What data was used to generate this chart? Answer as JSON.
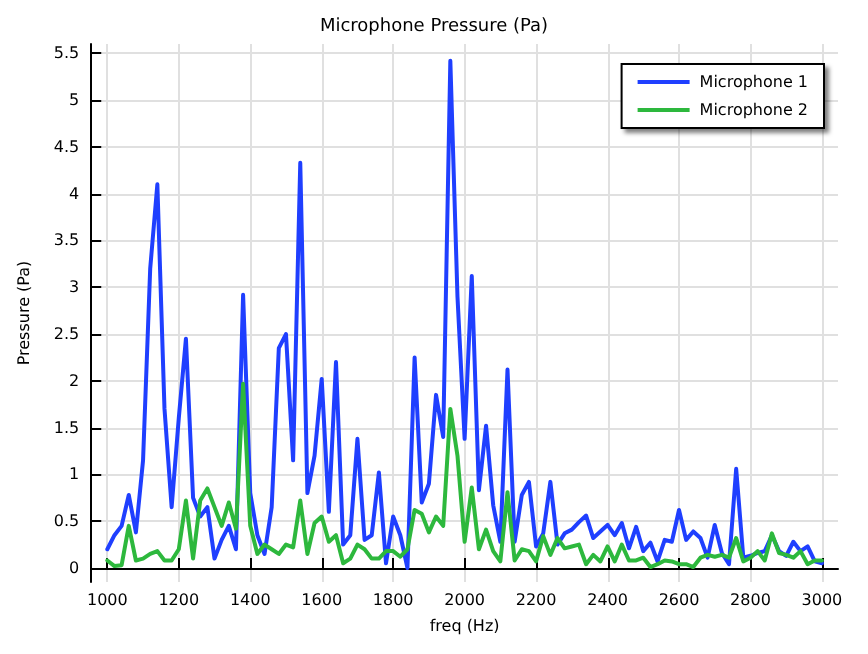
{
  "chart_data": {
    "type": "line",
    "title": "Microphone Pressure (Pa)",
    "xlabel": "freq (Hz)",
    "ylabel": "Pressure (Pa)",
    "x": [
      1000,
      1020,
      1040,
      1060,
      1080,
      1100,
      1120,
      1140,
      1160,
      1180,
      1200,
      1220,
      1240,
      1260,
      1280,
      1300,
      1320,
      1340,
      1360,
      1380,
      1400,
      1420,
      1440,
      1460,
      1480,
      1500,
      1520,
      1540,
      1560,
      1580,
      1600,
      1620,
      1640,
      1660,
      1680,
      1700,
      1720,
      1740,
      1760,
      1780,
      1800,
      1820,
      1840,
      1860,
      1880,
      1900,
      1920,
      1940,
      1960,
      1980,
      2000,
      2020,
      2040,
      2060,
      2080,
      2100,
      2120,
      2140,
      2160,
      2180,
      2200,
      2220,
      2240,
      2260,
      2280,
      2300,
      2320,
      2340,
      2360,
      2380,
      2400,
      2420,
      2440,
      2460,
      2480,
      2500,
      2520,
      2540,
      2560,
      2580,
      2600,
      2620,
      2640,
      2660,
      2680,
      2700,
      2720,
      2740,
      2760,
      2780,
      2800,
      2820,
      2840,
      2860,
      2880,
      2900,
      2920,
      2940,
      2960,
      2980,
      3000
    ],
    "series": [
      {
        "name": "Microphone 1",
        "color": "#1f3fff",
        "values": [
          0.2,
          0.35,
          0.45,
          0.78,
          0.38,
          1.15,
          3.2,
          4.1,
          1.7,
          0.65,
          1.6,
          2.45,
          0.75,
          0.55,
          0.65,
          0.1,
          0.3,
          0.45,
          0.2,
          2.92,
          0.8,
          0.35,
          0.15,
          0.65,
          2.35,
          2.5,
          1.15,
          4.33,
          0.8,
          1.2,
          2.02,
          0.6,
          2.2,
          0.25,
          0.35,
          1.38,
          0.3,
          0.35,
          1.02,
          0.05,
          0.55,
          0.35,
          0,
          2.25,
          0.7,
          0.9,
          1.85,
          1.4,
          5.42,
          2.9,
          1.38,
          3.12,
          0.83,
          1.52,
          0.67,
          0.28,
          2.12,
          0.28,
          0.78,
          0.92,
          0.23,
          0.37,
          0.92,
          0.25,
          0.37,
          0.41,
          0.49,
          0.56,
          0.32,
          0.39,
          0.46,
          0.35,
          0.48,
          0.21,
          0.44,
          0.18,
          0.27,
          0.07,
          0.3,
          0.28,
          0.62,
          0.3,
          0.39,
          0.32,
          0.11,
          0.46,
          0.16,
          0.04,
          1.06,
          0.11,
          0.13,
          0.16,
          0.18,
          0.35,
          0.18,
          0.13,
          0.28,
          0.18,
          0.23,
          0.07,
          0.05
        ]
      },
      {
        "name": "Microphone 2",
        "color": "#2db83d",
        "values": [
          0.08,
          0.02,
          0.03,
          0.45,
          0.08,
          0.1,
          0.15,
          0.18,
          0.08,
          0.08,
          0.2,
          0.72,
          0.1,
          0.72,
          0.85,
          0.65,
          0.45,
          0.7,
          0.42,
          1.97,
          0.45,
          0.15,
          0.25,
          0.2,
          0.15,
          0.25,
          0.22,
          0.72,
          0.15,
          0.48,
          0.55,
          0.28,
          0.35,
          0.05,
          0.1,
          0.25,
          0.2,
          0.1,
          0.1,
          0.18,
          0.18,
          0.12,
          0.2,
          0.62,
          0.58,
          0.38,
          0.55,
          0.45,
          1.7,
          1.2,
          0.28,
          0.86,
          0.2,
          0.41,
          0.18,
          0.07,
          0.81,
          0.08,
          0.2,
          0.18,
          0.07,
          0.34,
          0.14,
          0.32,
          0.21,
          0.23,
          0.25,
          0.04,
          0.14,
          0.07,
          0.23,
          0.07,
          0.25,
          0.08,
          0.08,
          0.11,
          0.01,
          0.04,
          0.08,
          0.07,
          0.04,
          0.04,
          0.01,
          0.11,
          0.14,
          0.12,
          0.14,
          0.11,
          0.32,
          0.07,
          0.11,
          0.18,
          0.08,
          0.37,
          0.16,
          0.14,
          0.11,
          0.18,
          0.04,
          0.08,
          0.08
        ]
      }
    ],
    "xlim": [
      955,
      3045
    ],
    "ylim": [
      -0.15,
      5.6
    ],
    "xticks": [
      1000,
      1200,
      1400,
      1600,
      1800,
      2000,
      2200,
      2400,
      2600,
      2800,
      3000
    ],
    "yticks": [
      0,
      0.5,
      1,
      1.5,
      2,
      2.5,
      3,
      3.5,
      4,
      4.5,
      5,
      5.5
    ],
    "grid": true,
    "legend": "top right",
    "marker": "none",
    "line_style": "solid"
  }
}
